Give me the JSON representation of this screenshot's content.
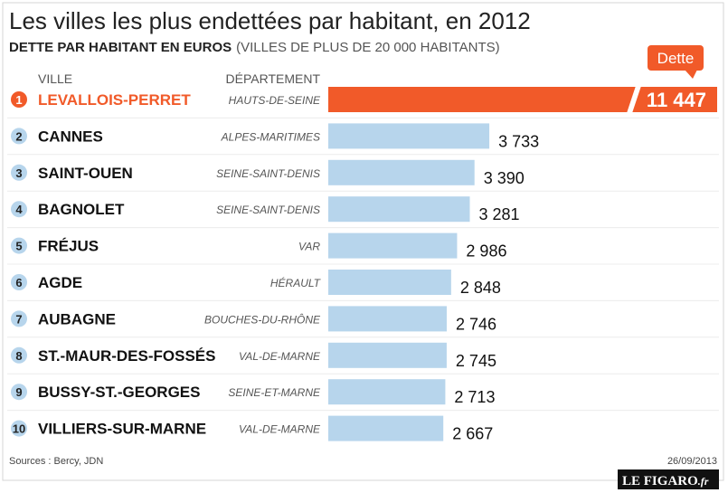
{
  "chart_data": {
    "type": "bar",
    "orientation": "horizontal",
    "title": "Les villes les plus endettées par habitant, en 2012",
    "subtitle": "DETTE PAR HABITANT EN EUROS",
    "subtitle_note": "(VILLES DE PLUS DE 20 000 HABITANTS)",
    "category_header": "VILLE",
    "department_header": "DÉPARTEMENT",
    "ranks": [
      1,
      2,
      3,
      4,
      5,
      6,
      7,
      8,
      9,
      10
    ],
    "categories": [
      "LEVALLOIS-PERRET",
      "CANNES",
      "SAINT-OUEN",
      "BAGNOLET",
      "FRÉJUS",
      "AGDE",
      "AUBAGNE",
      "ST.-MAUR-DES-FOSSÉS",
      "BUSSY-ST.-GEORGES",
      "VILLIERS-SUR-MARNE"
    ],
    "departments": [
      "HAUTS-DE-SEINE",
      "ALPES-MARITIMES",
      "SEINE-SAINT-DENIS",
      "SEINE-SAINT-DENIS",
      "VAR",
      "HÉRAULT",
      "BOUCHES-DU-RHÔNE",
      "VAL-DE-MARNE",
      "SEINE-ET-MARNE",
      "VAL-DE-MARNE"
    ],
    "series": [
      {
        "name": "Dette",
        "color": "#b7d5ec",
        "highlight_color": "#f15a29",
        "values": [
          11447,
          3733,
          3390,
          3281,
          2986,
          2848,
          2746,
          2745,
          2713,
          2667
        ],
        "value_labels": [
          "11 447",
          "3 733",
          "3 390",
          "3 281",
          "2 986",
          "2 848",
          "2 746",
          "2 745",
          "2 713",
          "2 667"
        ]
      }
    ],
    "source": "Sources : Bercy, JDN",
    "date": "26/09/2013",
    "logo": "LE FIGARO",
    "logo_suffix": ".fr"
  }
}
